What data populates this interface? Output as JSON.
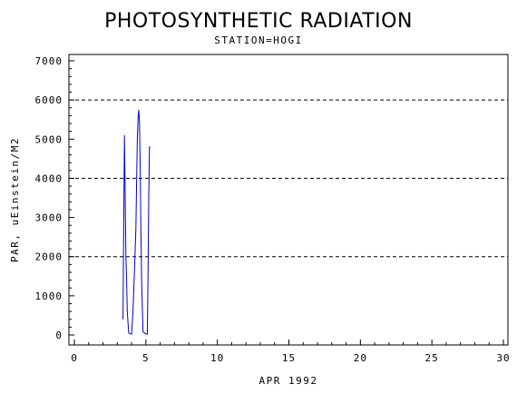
{
  "chart_data": {
    "type": "line",
    "title": "PHOTOSYNTHETIC RADIATION",
    "subtitle": "STATION=HOGI",
    "xlabel": "APR 1992",
    "ylabel": "PAR, uEinstein/M2",
    "xlim": [
      0,
      30
    ],
    "ylim": [
      0,
      7000
    ],
    "x_ticks": [
      0,
      5,
      10,
      15,
      20,
      25,
      30
    ],
    "y_ticks": [
      0,
      1000,
      2000,
      3000,
      4000,
      5000,
      6000,
      7000
    ],
    "reference_lines": [
      2000,
      4000,
      6000
    ],
    "grid": false,
    "legend": "none",
    "series": [
      {
        "color": "#0000cc",
        "x": [
          3.4,
          3.45,
          3.5,
          3.55,
          3.6,
          3.65,
          3.7,
          3.8,
          3.9,
          4.0,
          4.1,
          4.2,
          4.3,
          4.35,
          4.4,
          4.45,
          4.5,
          4.55,
          4.6,
          4.65,
          4.7,
          4.8,
          4.9,
          5.0,
          5.1,
          5.15,
          5.2,
          5.25,
          5.3
        ],
        "y": [
          400,
          2800,
          5100,
          3600,
          2000,
          1500,
          600,
          50,
          30,
          20,
          600,
          1600,
          2700,
          3900,
          5000,
          5500,
          5750,
          5500,
          4400,
          2800,
          1400,
          80,
          50,
          30,
          20,
          1500,
          3500,
          4800,
          4800
        ]
      }
    ]
  }
}
